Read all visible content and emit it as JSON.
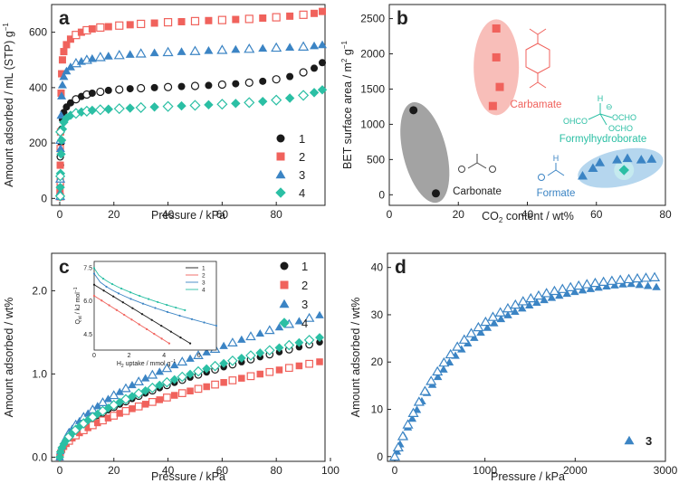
{
  "colors": {
    "black": "#1a1a1a",
    "red": "#f0625c",
    "blue": "#3b84c4",
    "teal": "#2bbfa4",
    "grey_ellipse": "#8c8c8c",
    "red_ellipse": "#f7b3ad",
    "blue_ellipse": "#9cc8e8"
  },
  "chart_data": [
    {
      "panel": "a",
      "type": "scatter",
      "xlabel": "Pressure / kPa",
      "ylabel": "Amount adsorbed  / mL (STP) g",
      "ylabel_sup": "−1",
      "xlim": [
        -3,
        98
      ],
      "ylim": [
        -25,
        700
      ],
      "xticks": [
        "0",
        "20",
        "40",
        "60",
        "80"
      ],
      "xtick_values": [
        0,
        20,
        40,
        60,
        80
      ],
      "yticks": [
        "0",
        "200",
        "400",
        "600"
      ],
      "ytick_values": [
        0,
        200,
        400,
        600
      ],
      "legend_position": "bottom-right",
      "series": [
        {
          "name": "1",
          "color": "black",
          "marker": "circle",
          "pairs": [
            [
              0.1,
              15
            ],
            [
              0.2,
              60
            ],
            [
              0.3,
              120
            ],
            [
              0.5,
              200
            ],
            [
              0.7,
              250
            ],
            [
              1,
              285
            ],
            [
              1.5,
              310
            ],
            [
              2.5,
              330
            ],
            [
              4,
              345
            ],
            [
              6,
              358
            ],
            [
              8,
              368
            ],
            [
              10,
              375
            ],
            [
              12,
              380
            ],
            [
              15,
              385
            ],
            [
              18,
              390
            ],
            [
              22,
              393
            ],
            [
              26,
              396
            ],
            [
              30,
              398
            ],
            [
              35,
              400
            ],
            [
              40,
              402
            ],
            [
              45,
              404
            ],
            [
              50,
              406
            ],
            [
              55,
              408
            ],
            [
              60,
              411
            ],
            [
              65,
              414
            ],
            [
              70,
              418
            ],
            [
              75,
              423
            ],
            [
              80,
              430
            ],
            [
              85,
              440
            ],
            [
              90,
              455
            ],
            [
              94,
              470
            ],
            [
              97,
              490
            ]
          ]
        },
        {
          "name": "2",
          "color": "red",
          "marker": "square",
          "pairs": [
            [
              0.1,
              25
            ],
            [
              0.2,
              120
            ],
            [
              0.3,
              240
            ],
            [
              0.5,
              380
            ],
            [
              0.7,
              450
            ],
            [
              1,
              500
            ],
            [
              1.5,
              530
            ],
            [
              2.5,
              555
            ],
            [
              4,
              575
            ],
            [
              6,
              590
            ],
            [
              8,
              600
            ],
            [
              10,
              607
            ],
            [
              12,
              612
            ],
            [
              15,
              617
            ],
            [
              18,
              620
            ],
            [
              22,
              624
            ],
            [
              26,
              627
            ],
            [
              30,
              630
            ],
            [
              35,
              633
            ],
            [
              40,
              636
            ],
            [
              45,
              638
            ],
            [
              50,
              640
            ],
            [
              55,
              642
            ],
            [
              60,
              644
            ],
            [
              65,
              646
            ],
            [
              70,
              648
            ],
            [
              75,
              651
            ],
            [
              80,
              654
            ],
            [
              85,
              658
            ],
            [
              90,
              663
            ],
            [
              94,
              668
            ],
            [
              97,
              675
            ]
          ]
        },
        {
          "name": "3",
          "color": "blue",
          "marker": "triangle",
          "pairs": [
            [
              0.1,
              20
            ],
            [
              0.2,
              90
            ],
            [
              0.3,
              180
            ],
            [
              0.5,
              300
            ],
            [
              0.7,
              370
            ],
            [
              1,
              410
            ],
            [
              1.5,
              440
            ],
            [
              2.5,
              460
            ],
            [
              4,
              475
            ],
            [
              6,
              488
            ],
            [
              8,
              495
            ],
            [
              10,
              500
            ],
            [
              12,
              505
            ],
            [
              15,
              510
            ],
            [
              18,
              514
            ],
            [
              22,
              517
            ],
            [
              26,
              520
            ],
            [
              30,
              523
            ],
            [
              35,
              526
            ],
            [
              40,
              528
            ],
            [
              45,
              530
            ],
            [
              50,
              532
            ],
            [
              55,
              534
            ],
            [
              60,
              536
            ],
            [
              65,
              538
            ],
            [
              70,
              540
            ],
            [
              75,
              542
            ],
            [
              80,
              544
            ],
            [
              85,
              546
            ],
            [
              90,
              548
            ],
            [
              94,
              551
            ],
            [
              97,
              555
            ]
          ]
        },
        {
          "name": "4",
          "color": "teal",
          "marker": "diamond",
          "pairs": [
            [
              0.1,
              10
            ],
            [
              0.2,
              40
            ],
            [
              0.3,
              90
            ],
            [
              0.5,
              160
            ],
            [
              0.7,
              210
            ],
            [
              1,
              250
            ],
            [
              1.5,
              275
            ],
            [
              2.5,
              290
            ],
            [
              4,
              300
            ],
            [
              6,
              307
            ],
            [
              8,
              312
            ],
            [
              10,
              315
            ],
            [
              12,
              318
            ],
            [
              15,
              320
            ],
            [
              18,
              322
            ],
            [
              22,
              324
            ],
            [
              26,
              326
            ],
            [
              30,
              328
            ],
            [
              35,
              330
            ],
            [
              40,
              332
            ],
            [
              45,
              334
            ],
            [
              50,
              336
            ],
            [
              55,
              338
            ],
            [
              60,
              340
            ],
            [
              65,
              343
            ],
            [
              70,
              346
            ],
            [
              75,
              350
            ],
            [
              80,
              355
            ],
            [
              85,
              362
            ],
            [
              90,
              372
            ],
            [
              94,
              382
            ],
            [
              97,
              392
            ]
          ]
        }
      ]
    },
    {
      "panel": "b",
      "type": "scatter",
      "xlabel": "CO",
      "xlabel_sub": "2",
      "xlabel_tail": " content / wt%",
      "ylabel": "BET surface area / m",
      "ylabel_sup": "2",
      "ylabel_tail": " g",
      "ylabel_sup2": "−1",
      "xlim": [
        0,
        80
      ],
      "ylim": [
        -150,
        2700
      ],
      "xticks": [
        "0",
        "20",
        "40",
        "60",
        "80"
      ],
      "xtick_values": [
        0,
        20,
        40,
        60,
        80
      ],
      "yticks": [
        "0",
        "500",
        "1000",
        "1500",
        "2000",
        "2500"
      ],
      "ytick_values": [
        0,
        500,
        1000,
        1500,
        2000,
        2500
      ],
      "groups": [
        {
          "name": "Carbonate",
          "color": "black",
          "marker": "circle",
          "pairs": [
            [
              7,
              1200
            ],
            [
              13.5,
              20
            ]
          ]
        },
        {
          "name": "Carbamate",
          "color": "red",
          "marker": "square",
          "pairs": [
            [
              31,
              2360
            ],
            [
              31,
              1950
            ],
            [
              32,
              1530
            ],
            [
              30,
              1260
            ]
          ]
        },
        {
          "name": "Formate",
          "color": "blue",
          "marker": "triangle",
          "pairs": [
            [
              56,
              270
            ],
            [
              59,
              380
            ],
            [
              61,
              460
            ],
            [
              66,
              500
            ],
            [
              69,
              520
            ],
            [
              73,
              500
            ],
            [
              76,
              510
            ]
          ]
        },
        {
          "name": "Formylhydroborate",
          "color": "teal",
          "marker": "diamond",
          "pairs": [
            [
              68,
              350
            ]
          ]
        }
      ],
      "labels": {
        "carbonate": "Carbonate",
        "carbamate": "Carbamate",
        "formate": "Formate",
        "formylhydroborate": "Formylhydroborate",
        "h1": "H",
        "h2": "H",
        "ohco": "OHCO",
        "ocho1": "OCHO",
        "ocho2": "OCHO",
        "b": "B",
        "minus": "⊖"
      }
    },
    {
      "panel": "c",
      "type": "scatter",
      "xlabel": "Pressure / kPa",
      "ylabel": "Amount adsorbed / wt%",
      "xlim": [
        -3,
        98
      ],
      "ylim": [
        -0.05,
        2.45
      ],
      "xticks": [
        "0",
        "20",
        "40",
        "60",
        "80",
        "100"
      ],
      "xtick_values": [
        0,
        20,
        40,
        60,
        80,
        100
      ],
      "yticks": [
        "0.0",
        "1.0",
        "2.0"
      ],
      "ytick_values": [
        0,
        1,
        2
      ],
      "legend_position": "top-right",
      "series": [
        {
          "name": "1",
          "color": "black",
          "marker": "circle",
          "k": 0.123
        },
        {
          "name": "2",
          "color": "red",
          "marker": "square",
          "k": 0.102
        },
        {
          "name": "3",
          "color": "blue",
          "marker": "triangle",
          "k": 0.152
        },
        {
          "name": "4",
          "color": "teal",
          "marker": "diamond",
          "k": 0.128
        }
      ],
      "inset": {
        "xlabel": "H",
        "xlabel_sub": "2",
        "xlabel_tail": " uptake / mmol g",
        "xlabel_sup": "−1",
        "ylabel": "Q",
        "ylabel_sub": "st",
        "ylabel_tail": " / kJ mol",
        "ylabel_sup": "−1",
        "xlim": [
          0,
          7
        ],
        "ylim": [
          3.8,
          7.8
        ],
        "xticks": [
          "0",
          "2",
          "4",
          "6"
        ],
        "xtick_values": [
          0,
          2,
          4,
          6
        ],
        "yticks": [
          "4.5",
          "6.0",
          "7.5"
        ],
        "ytick_values": [
          4.5,
          6.0,
          7.5
        ],
        "series": [
          {
            "name": "1",
            "color": "black",
            "start": [
              0,
              6.75
            ],
            "end": [
              5.5,
              4.1
            ]
          },
          {
            "name": "2",
            "color": "red",
            "start": [
              0,
              6.25
            ],
            "end": [
              4.3,
              4.1
            ]
          },
          {
            "name": "3",
            "color": "blue",
            "start": [
              0,
              7.25
            ],
            "end": [
              7,
              4.9
            ]
          },
          {
            "name": "4",
            "color": "teal",
            "start": [
              0,
              7.5
            ],
            "end": [
              5.2,
              5.6
            ]
          }
        ]
      }
    },
    {
      "panel": "d",
      "type": "scatter",
      "xlabel": "Pressure / kPa",
      "ylabel": "Amount adsorbed / wt%",
      "xlim": [
        -80,
        3000
      ],
      "ylim": [
        -1,
        43
      ],
      "xticks": [
        "0",
        "1000",
        "2000",
        "3000"
      ],
      "xtick_values": [
        0,
        1000,
        2000,
        3000
      ],
      "yticks": [
        "0",
        "10",
        "20",
        "30",
        "40"
      ],
      "ytick_values": [
        0,
        10,
        20,
        30,
        40
      ],
      "legend_position": "bottom-right",
      "series": [
        {
          "name": "3",
          "color": "blue",
          "marker": "triangle"
        }
      ]
    }
  ]
}
